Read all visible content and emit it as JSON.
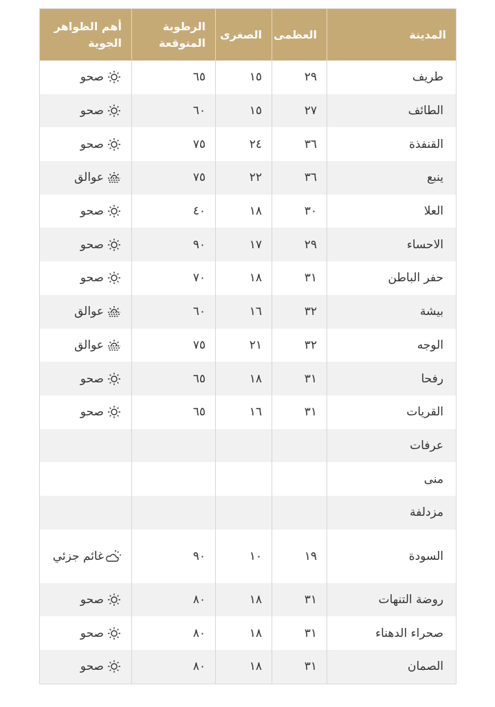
{
  "headers": {
    "city": "المدينة",
    "max": "العظمى",
    "min": "الصغرى",
    "humidity": "الرطوبة المتوقعة",
    "weather": "أهم الظواهر الجوية"
  },
  "colors": {
    "header_bg": "#c6aa76",
    "alt_row": "#f1f1f1"
  },
  "rows": [
    {
      "city": "طريف",
      "max": "٢٩",
      "min": "١٥",
      "humidity": "٦٥",
      "weather": "صحو",
      "icon": "sun-icon"
    },
    {
      "city": "الطائف",
      "max": "٢٧",
      "min": "١٥",
      "humidity": "٦٠",
      "weather": "صحو",
      "icon": "sun-icon"
    },
    {
      "city": "القنفذة",
      "max": "٣٦",
      "min": "٢٤",
      "humidity": "٧٥",
      "weather": "صحو",
      "icon": "sun-icon"
    },
    {
      "city": "ينبع",
      "max": "٣٦",
      "min": "٢٢",
      "humidity": "٧٥",
      "weather": "عوالق",
      "icon": "dust-icon"
    },
    {
      "city": "العلا",
      "max": "٣٠",
      "min": "١٨",
      "humidity": "٤٠",
      "weather": "صحو",
      "icon": "sun-icon"
    },
    {
      "city": "الاحساء",
      "max": "٢٩",
      "min": "١٧",
      "humidity": "٩٠",
      "weather": "صحو",
      "icon": "sun-icon"
    },
    {
      "city": "حفر الباطن",
      "max": "٣١",
      "min": "١٨",
      "humidity": "٧٠",
      "weather": "صحو",
      "icon": "sun-icon"
    },
    {
      "city": "بيشة",
      "max": "٣٢",
      "min": "١٦",
      "humidity": "٦٠",
      "weather": "عوالق",
      "icon": "dust-icon"
    },
    {
      "city": "الوجه",
      "max": "٣٢",
      "min": "٢١",
      "humidity": "٧٥",
      "weather": "عوالق",
      "icon": "dust-icon"
    },
    {
      "city": "رفحا",
      "max": "٣١",
      "min": "١٨",
      "humidity": "٦٥",
      "weather": "صحو",
      "icon": "sun-icon"
    },
    {
      "city": "القريات",
      "max": "٣١",
      "min": "١٦",
      "humidity": "٦٥",
      "weather": "صحو",
      "icon": "sun-icon"
    },
    {
      "city": "عرفات",
      "max": "",
      "min": "",
      "humidity": "",
      "weather": "",
      "icon": ""
    },
    {
      "city": "منى",
      "max": "",
      "min": "",
      "humidity": "",
      "weather": "",
      "icon": ""
    },
    {
      "city": "مزدلفة",
      "max": "",
      "min": "",
      "humidity": "",
      "weather": "",
      "icon": ""
    },
    {
      "city": "السودة",
      "max": "١٩",
      "min": "١٠",
      "humidity": "٩٠",
      "weather": "غائم جزئي",
      "icon": "partly-cloudy-icon"
    },
    {
      "city": "روضة التنهات",
      "max": "٣١",
      "min": "١٨",
      "humidity": "٨٠",
      "weather": "صحو",
      "icon": "sun-icon"
    },
    {
      "city": "صحراء الدهناء",
      "max": "٣١",
      "min": "١٨",
      "humidity": "٨٠",
      "weather": "صحو",
      "icon": "sun-icon"
    },
    {
      "city": "الصمان",
      "max": "٣١",
      "min": "١٨",
      "humidity": "٨٠",
      "weather": "صحو",
      "icon": "sun-icon"
    }
  ]
}
